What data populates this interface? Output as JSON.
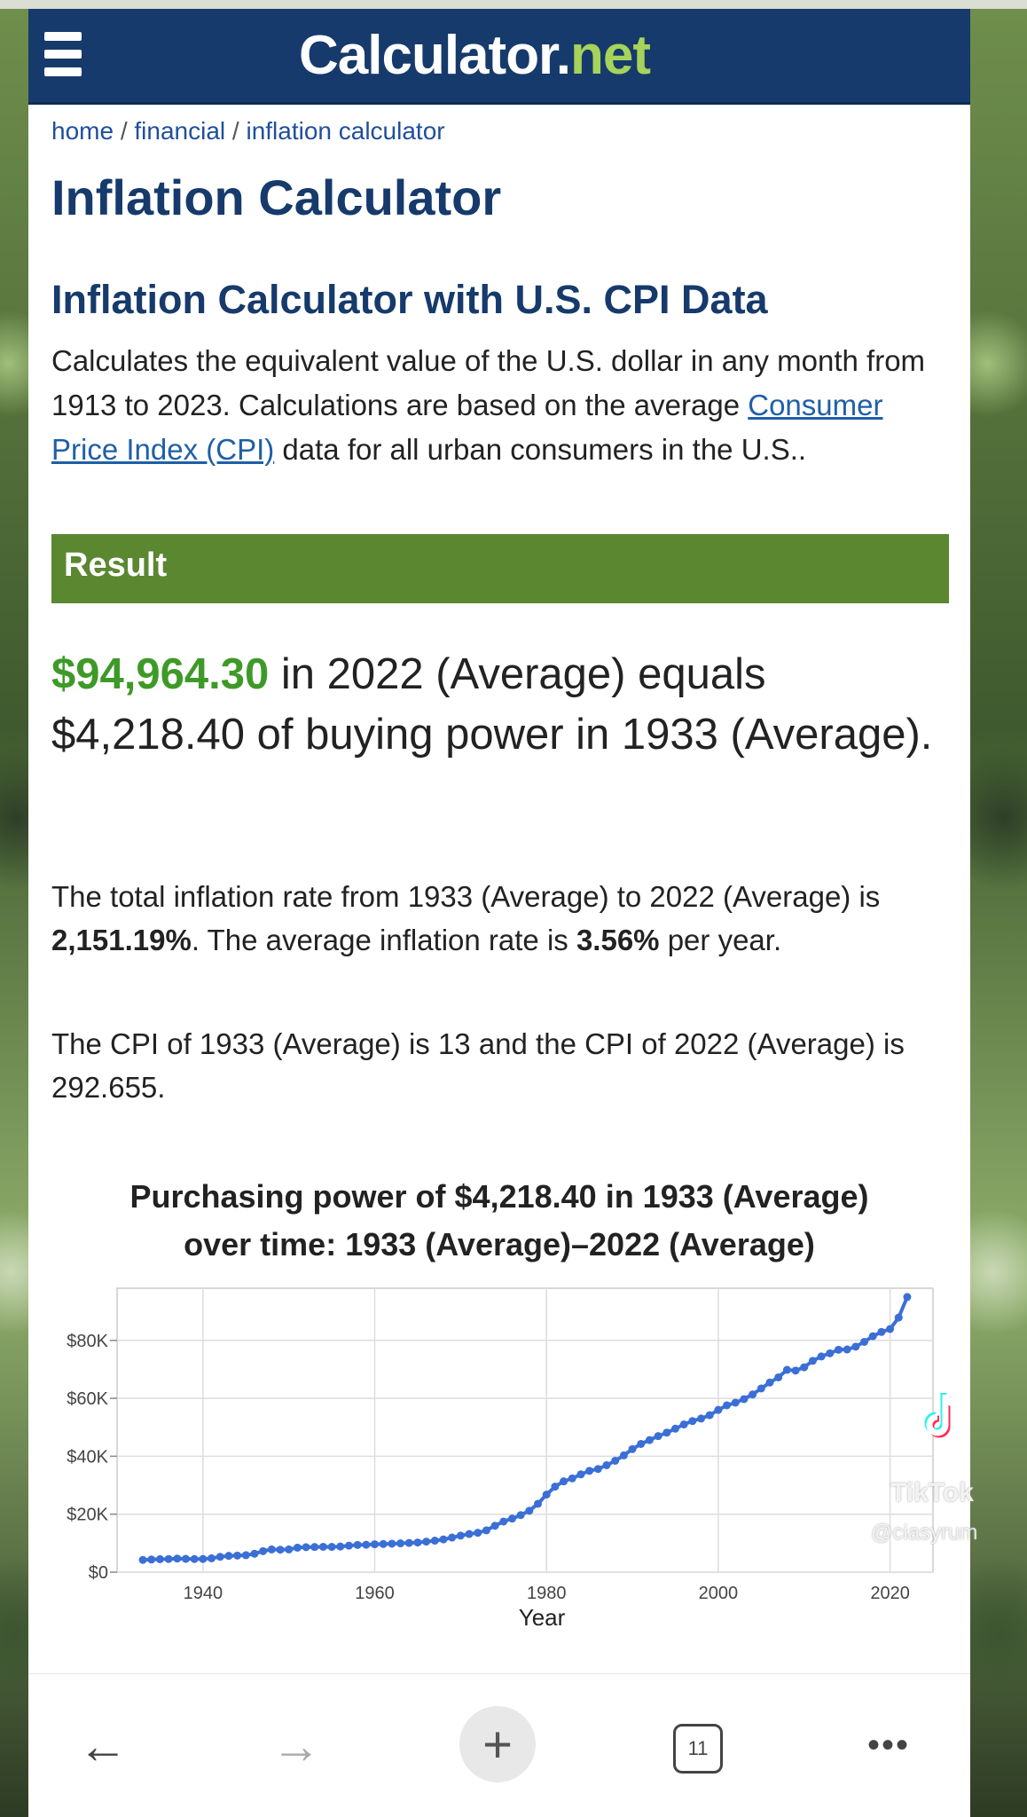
{
  "header": {
    "logo_main": "Calculator.",
    "logo_suffix": "net"
  },
  "breadcrumb": [
    "home",
    "financial",
    "inflation calculator"
  ],
  "page_title": "Inflation Calculator",
  "section_title": "Inflation Calculator with U.S. CPI Data",
  "description": {
    "before_link": "Calculates the equivalent value of the U.S. dollar in any month from 1913 to 2023. Calculations are based on the average ",
    "link_text": "Consumer Price Index (CPI)",
    "after_link": " data for all urban consumers in the U.S.."
  },
  "result": {
    "bar_label": "Result",
    "amount": "$94,964.30",
    "text": " in 2022 (Average) equals $4,218.40 of buying power in 1933 (Average).",
    "stats_part1": "The total inflation rate from 1933 (Average) to 2022 (Average) is ",
    "total_rate": "2,151.19%",
    "stats_part2": ". The average inflation rate is ",
    "avg_rate": "3.56%",
    "stats_part3": " per year.",
    "cpi_text": "The CPI of 1933 (Average) is 13 and the CPI of 2022 (Average) is 292.655."
  },
  "chart_title_line1": "Purchasing power of $4,218.40 in 1933 (Average)",
  "chart_title_line2": "over time: 1933 (Average)–2022 (Average)",
  "chart_data": {
    "type": "line",
    "title": "Purchasing power of $4,218.40 in 1933 (Average) over time: 1933 (Average)–2022 (Average)",
    "xlabel": "Year",
    "ylabel": "",
    "x_ticks": [
      1940,
      1960,
      1980,
      2000,
      2020
    ],
    "y_ticks": [
      "$0",
      "$20K",
      "$40K",
      "$60K",
      "$80K"
    ],
    "y_tick_values": [
      0,
      20000,
      40000,
      60000,
      80000
    ],
    "xlim": [
      1930,
      2025
    ],
    "ylim": [
      0,
      98000
    ],
    "grid": true,
    "series": [
      {
        "color": "#3b6fd6",
        "x": [
          1933,
          1934,
          1935,
          1936,
          1937,
          1938,
          1939,
          1940,
          1941,
          1942,
          1943,
          1944,
          1945,
          1946,
          1947,
          1948,
          1949,
          1950,
          1951,
          1952,
          1953,
          1954,
          1955,
          1956,
          1957,
          1958,
          1959,
          1960,
          1961,
          1962,
          1963,
          1964,
          1965,
          1966,
          1967,
          1968,
          1969,
          1970,
          1971,
          1972,
          1973,
          1974,
          1975,
          1976,
          1977,
          1978,
          1979,
          1980,
          1981,
          1982,
          1983,
          1984,
          1985,
          1986,
          1987,
          1988,
          1989,
          1990,
          1991,
          1992,
          1993,
          1994,
          1995,
          1996,
          1997,
          1998,
          1999,
          2000,
          2001,
          2002,
          2003,
          2004,
          2005,
          2006,
          2007,
          2008,
          2009,
          2010,
          2011,
          2012,
          2013,
          2014,
          2015,
          2016,
          2017,
          2018,
          2019,
          2020,
          2021,
          2022
        ],
        "y": [
          4218,
          4354,
          4464,
          4516,
          4678,
          4581,
          4516,
          4548,
          4776,
          5289,
          5614,
          5711,
          5841,
          6337,
          7248,
          7832,
          7735,
          7832,
          8450,
          8612,
          8677,
          8742,
          8709,
          8839,
          9132,
          9392,
          9457,
          9619,
          9717,
          9814,
          9944,
          10074,
          10236,
          10529,
          10854,
          11309,
          11927,
          12610,
          13154,
          13576,
          14421,
          16013,
          17475,
          18482,
          19683,
          21185,
          23587,
          26770,
          29531,
          31350,
          32356,
          33752,
          34953,
          35602,
          36905,
          38438,
          40296,
          42467,
          44255,
          45588,
          46953,
          48156,
          49523,
          50986,
          52157,
          53002,
          54174,
          55995,
          57588,
          58500,
          59737,
          61330,
          63409,
          65456,
          67240,
          69818,
          69567,
          70708,
          72940,
          74453,
          75543,
          76771,
          76862,
          77832,
          79488,
          81426,
          82900,
          83923,
          87866,
          94964
        ]
      }
    ]
  },
  "bottom_nav": {
    "back": "←",
    "forward": "→",
    "new_tab": "+",
    "tab_count": "11",
    "more": "•••"
  },
  "watermark": {
    "brand": "TikTok",
    "user": "@ciasyrum"
  }
}
